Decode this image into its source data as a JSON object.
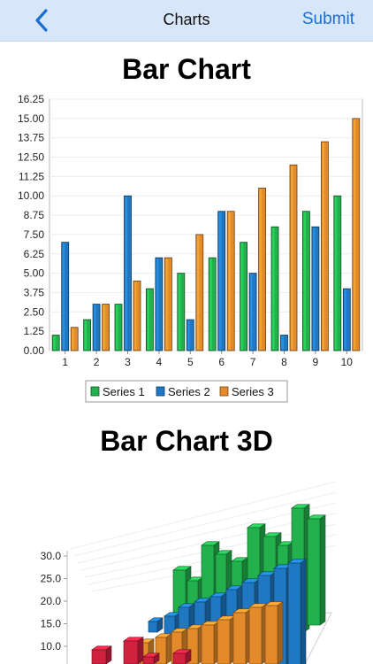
{
  "header": {
    "title": "Charts",
    "back_icon": "chevron-left-icon",
    "submit_label": "Submit",
    "accent_color": "#1a6fd1",
    "background_color": "#d7e6f9"
  },
  "sections": {
    "bar_title": "Bar Chart",
    "bar3d_title": "Bar Chart 3D"
  },
  "chart_data": [
    {
      "type": "bar",
      "title": "Bar Chart",
      "categories": [
        "1",
        "2",
        "3",
        "4",
        "5",
        "6",
        "7",
        "8",
        "9",
        "10"
      ],
      "series": [
        {
          "name": "Series 1",
          "color": "#22b14c",
          "values": [
            1,
            2,
            3,
            4,
            5,
            6,
            7,
            8,
            9,
            10
          ]
        },
        {
          "name": "Series 2",
          "color": "#1f78c1",
          "values": [
            7,
            3,
            10,
            6,
            2,
            9,
            5,
            1,
            8,
            4
          ]
        },
        {
          "name": "Series 3",
          "color": "#e38a2b",
          "values": [
            1.5,
            3,
            4.5,
            6,
            7.5,
            9,
            10.5,
            12,
            13.5,
            15
          ]
        }
      ],
      "ylim": [
        0,
        16.25
      ],
      "yticks": [
        "0.00",
        "1.25",
        "2.50",
        "3.75",
        "5.00",
        "6.25",
        "7.50",
        "8.75",
        "10.00",
        "11.25",
        "12.50",
        "13.75",
        "15.00",
        "16.25"
      ],
      "grid": true,
      "legend_position": "bottom"
    },
    {
      "type": "bar",
      "title": "Bar Chart 3D",
      "three_d": true,
      "yticks": [
        "10.0",
        "15.0",
        "20.0",
        "25.0",
        "30.0"
      ]
    }
  ]
}
